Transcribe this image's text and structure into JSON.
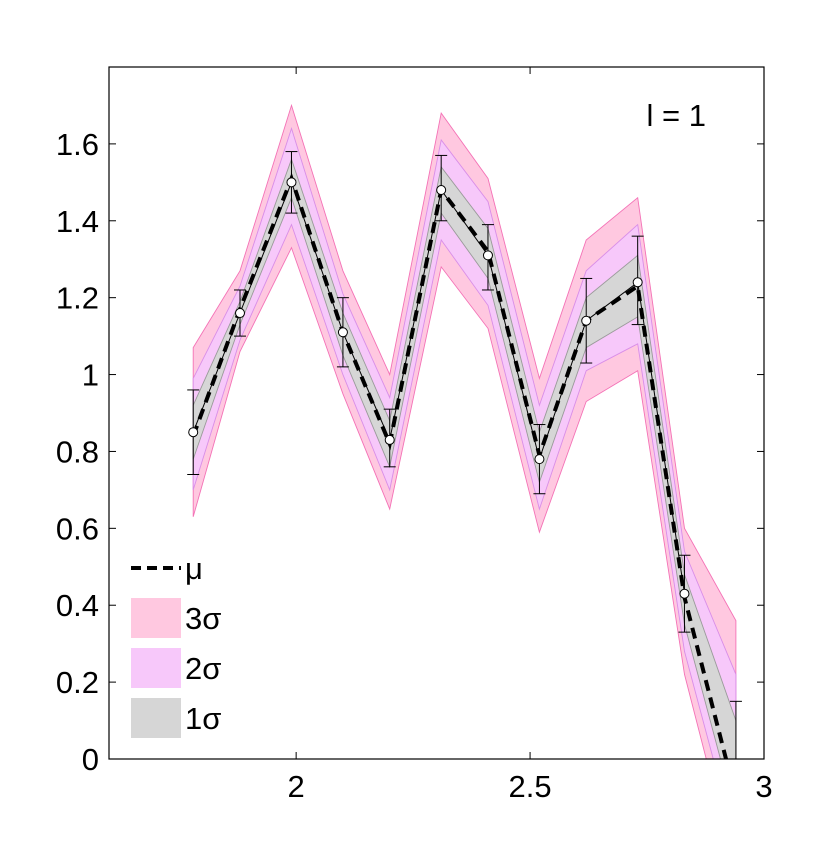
{
  "chart_data": {
    "type": "line",
    "annotation": "l = 1",
    "xlim": [
      1.6,
      3.0
    ],
    "ylim": [
      0,
      1.8
    ],
    "xticks": [
      {
        "value": 2,
        "label": "2"
      },
      {
        "value": 2.5,
        "label": "2.5"
      },
      {
        "value": 3,
        "label": "3"
      }
    ],
    "yticks": [
      {
        "value": 0,
        "label": "0"
      },
      {
        "value": 0.2,
        "label": "0.2"
      },
      {
        "value": 0.4,
        "label": "0.4"
      },
      {
        "value": 0.6,
        "label": "0.6"
      },
      {
        "value": 0.8,
        "label": "0.8"
      },
      {
        "value": 1.0,
        "label": "1"
      },
      {
        "value": 1.2,
        "label": "1.2"
      },
      {
        "value": 1.4,
        "label": "1.4"
      },
      {
        "value": 1.6,
        "label": "1.6"
      }
    ],
    "grid": false,
    "legend_position": "bottom-left",
    "legend": [
      {
        "key": "mu",
        "label": "μ",
        "style": "dashed-line"
      },
      {
        "key": "band3",
        "label": "3σ",
        "color": "#ffc8e0"
      },
      {
        "key": "band2",
        "label": "2σ",
        "color": "#f7c8fa"
      },
      {
        "key": "band1",
        "label": "1σ",
        "color": "#d6d6d6"
      }
    ],
    "x": [
      1.78,
      1.88,
      1.99,
      2.1,
      2.2,
      2.31,
      2.41,
      2.52,
      2.62,
      2.73,
      2.83,
      2.94
    ],
    "mu": [
      0.84,
      1.17,
      1.51,
      1.11,
      0.82,
      1.48,
      1.32,
      0.79,
      1.14,
      1.23,
      0.42,
      -0.1
    ],
    "band3": {
      "lower": [
        0.63,
        1.06,
        1.33,
        0.95,
        0.65,
        1.28,
        1.12,
        0.59,
        0.93,
        1.01,
        0.22,
        -0.3
      ],
      "upper": [
        1.07,
        1.27,
        1.7,
        1.27,
        1.0,
        1.68,
        1.51,
        0.99,
        1.35,
        1.46,
        0.6,
        0.36
      ]
    },
    "band2": {
      "lower": [
        0.7,
        1.09,
        1.39,
        1.0,
        0.7,
        1.35,
        1.18,
        0.65,
        1.01,
        1.08,
        0.28,
        -0.22
      ],
      "upper": [
        0.99,
        1.23,
        1.64,
        1.21,
        0.94,
        1.61,
        1.45,
        0.92,
        1.27,
        1.39,
        0.54,
        0.22
      ]
    },
    "band1": {
      "lower": [
        0.78,
        1.13,
        1.46,
        1.05,
        0.76,
        1.42,
        1.25,
        0.72,
        1.07,
        1.15,
        0.35,
        -0.15
      ],
      "upper": [
        0.92,
        1.19,
        1.56,
        1.16,
        0.88,
        1.54,
        1.38,
        0.85,
        1.2,
        1.31,
        0.48,
        0.1
      ]
    },
    "observations": {
      "x": [
        1.78,
        1.88,
        1.99,
        2.1,
        2.2,
        2.31,
        2.41,
        2.52,
        2.62,
        2.73,
        2.83,
        2.94
      ],
      "y": [
        0.85,
        1.16,
        1.5,
        1.11,
        0.83,
        1.48,
        1.31,
        0.78,
        1.14,
        1.24,
        0.43,
        null
      ],
      "err_low": [
        0.74,
        1.1,
        1.42,
        1.02,
        0.76,
        1.4,
        1.22,
        0.69,
        1.03,
        1.13,
        0.33,
        0
      ],
      "err_high": [
        0.96,
        1.22,
        1.58,
        1.2,
        0.91,
        1.57,
        1.39,
        0.87,
        1.25,
        1.36,
        0.53,
        0.15
      ]
    }
  }
}
